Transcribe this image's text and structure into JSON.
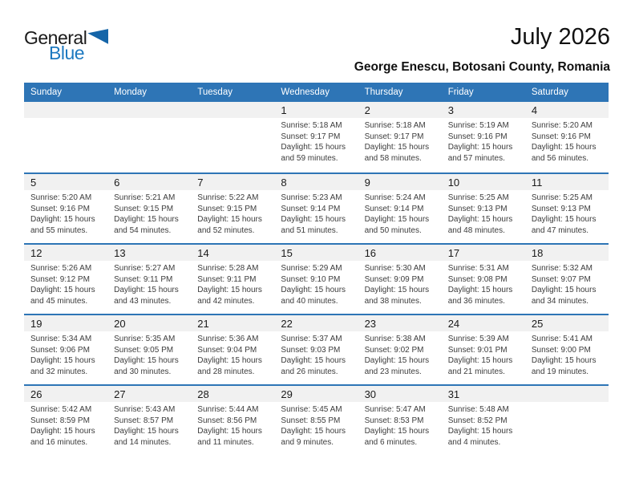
{
  "logo": {
    "part1": "General",
    "part2": "Blue",
    "triangle_icon": "sail-triangle-icon"
  },
  "header": {
    "title": "July 2026",
    "subtitle": "George Enescu, Botosani County, Romania"
  },
  "colors": {
    "header_bar_bg": "#2E75B6",
    "week_separator": "#2E75B6",
    "day_number_band_bg": "#F1F1F1",
    "logo_blue": "#1D79C0",
    "logo_triangle": "#1565A8",
    "body_text": "#3C3C3C"
  },
  "calendar": {
    "day_headers": [
      "Sunday",
      "Monday",
      "Tuesday",
      "Wednesday",
      "Thursday",
      "Friday",
      "Saturday"
    ],
    "weeks": [
      [
        null,
        null,
        null,
        {
          "day": "1",
          "lines": [
            "Sunrise: 5:18 AM",
            "Sunset: 9:17 PM",
            "Daylight: 15 hours",
            "and 59 minutes."
          ]
        },
        {
          "day": "2",
          "lines": [
            "Sunrise: 5:18 AM",
            "Sunset: 9:17 PM",
            "Daylight: 15 hours",
            "and 58 minutes."
          ]
        },
        {
          "day": "3",
          "lines": [
            "Sunrise: 5:19 AM",
            "Sunset: 9:16 PM",
            "Daylight: 15 hours",
            "and 57 minutes."
          ]
        },
        {
          "day": "4",
          "lines": [
            "Sunrise: 5:20 AM",
            "Sunset: 9:16 PM",
            "Daylight: 15 hours",
            "and 56 minutes."
          ]
        }
      ],
      [
        {
          "day": "5",
          "lines": [
            "Sunrise: 5:20 AM",
            "Sunset: 9:16 PM",
            "Daylight: 15 hours",
            "and 55 minutes."
          ]
        },
        {
          "day": "6",
          "lines": [
            "Sunrise: 5:21 AM",
            "Sunset: 9:15 PM",
            "Daylight: 15 hours",
            "and 54 minutes."
          ]
        },
        {
          "day": "7",
          "lines": [
            "Sunrise: 5:22 AM",
            "Sunset: 9:15 PM",
            "Daylight: 15 hours",
            "and 52 minutes."
          ]
        },
        {
          "day": "8",
          "lines": [
            "Sunrise: 5:23 AM",
            "Sunset: 9:14 PM",
            "Daylight: 15 hours",
            "and 51 minutes."
          ]
        },
        {
          "day": "9",
          "lines": [
            "Sunrise: 5:24 AM",
            "Sunset: 9:14 PM",
            "Daylight: 15 hours",
            "and 50 minutes."
          ]
        },
        {
          "day": "10",
          "lines": [
            "Sunrise: 5:25 AM",
            "Sunset: 9:13 PM",
            "Daylight: 15 hours",
            "and 48 minutes."
          ]
        },
        {
          "day": "11",
          "lines": [
            "Sunrise: 5:25 AM",
            "Sunset: 9:13 PM",
            "Daylight: 15 hours",
            "and 47 minutes."
          ]
        }
      ],
      [
        {
          "day": "12",
          "lines": [
            "Sunrise: 5:26 AM",
            "Sunset: 9:12 PM",
            "Daylight: 15 hours",
            "and 45 minutes."
          ]
        },
        {
          "day": "13",
          "lines": [
            "Sunrise: 5:27 AM",
            "Sunset: 9:11 PM",
            "Daylight: 15 hours",
            "and 43 minutes."
          ]
        },
        {
          "day": "14",
          "lines": [
            "Sunrise: 5:28 AM",
            "Sunset: 9:11 PM",
            "Daylight: 15 hours",
            "and 42 minutes."
          ]
        },
        {
          "day": "15",
          "lines": [
            "Sunrise: 5:29 AM",
            "Sunset: 9:10 PM",
            "Daylight: 15 hours",
            "and 40 minutes."
          ]
        },
        {
          "day": "16",
          "lines": [
            "Sunrise: 5:30 AM",
            "Sunset: 9:09 PM",
            "Daylight: 15 hours",
            "and 38 minutes."
          ]
        },
        {
          "day": "17",
          "lines": [
            "Sunrise: 5:31 AM",
            "Sunset: 9:08 PM",
            "Daylight: 15 hours",
            "and 36 minutes."
          ]
        },
        {
          "day": "18",
          "lines": [
            "Sunrise: 5:32 AM",
            "Sunset: 9:07 PM",
            "Daylight: 15 hours",
            "and 34 minutes."
          ]
        }
      ],
      [
        {
          "day": "19",
          "lines": [
            "Sunrise: 5:34 AM",
            "Sunset: 9:06 PM",
            "Daylight: 15 hours",
            "and 32 minutes."
          ]
        },
        {
          "day": "20",
          "lines": [
            "Sunrise: 5:35 AM",
            "Sunset: 9:05 PM",
            "Daylight: 15 hours",
            "and 30 minutes."
          ]
        },
        {
          "day": "21",
          "lines": [
            "Sunrise: 5:36 AM",
            "Sunset: 9:04 PM",
            "Daylight: 15 hours",
            "and 28 minutes."
          ]
        },
        {
          "day": "22",
          "lines": [
            "Sunrise: 5:37 AM",
            "Sunset: 9:03 PM",
            "Daylight: 15 hours",
            "and 26 minutes."
          ]
        },
        {
          "day": "23",
          "lines": [
            "Sunrise: 5:38 AM",
            "Sunset: 9:02 PM",
            "Daylight: 15 hours",
            "and 23 minutes."
          ]
        },
        {
          "day": "24",
          "lines": [
            "Sunrise: 5:39 AM",
            "Sunset: 9:01 PM",
            "Daylight: 15 hours",
            "and 21 minutes."
          ]
        },
        {
          "day": "25",
          "lines": [
            "Sunrise: 5:41 AM",
            "Sunset: 9:00 PM",
            "Daylight: 15 hours",
            "and 19 minutes."
          ]
        }
      ],
      [
        {
          "day": "26",
          "lines": [
            "Sunrise: 5:42 AM",
            "Sunset: 8:59 PM",
            "Daylight: 15 hours",
            "and 16 minutes."
          ]
        },
        {
          "day": "27",
          "lines": [
            "Sunrise: 5:43 AM",
            "Sunset: 8:57 PM",
            "Daylight: 15 hours",
            "and 14 minutes."
          ]
        },
        {
          "day": "28",
          "lines": [
            "Sunrise: 5:44 AM",
            "Sunset: 8:56 PM",
            "Daylight: 15 hours",
            "and 11 minutes."
          ]
        },
        {
          "day": "29",
          "lines": [
            "Sunrise: 5:45 AM",
            "Sunset: 8:55 PM",
            "Daylight: 15 hours",
            "and 9 minutes."
          ]
        },
        {
          "day": "30",
          "lines": [
            "Sunrise: 5:47 AM",
            "Sunset: 8:53 PM",
            "Daylight: 15 hours",
            "and 6 minutes."
          ]
        },
        {
          "day": "31",
          "lines": [
            "Sunrise: 5:48 AM",
            "Sunset: 8:52 PM",
            "Daylight: 15 hours",
            "and 4 minutes."
          ]
        },
        null
      ]
    ]
  }
}
